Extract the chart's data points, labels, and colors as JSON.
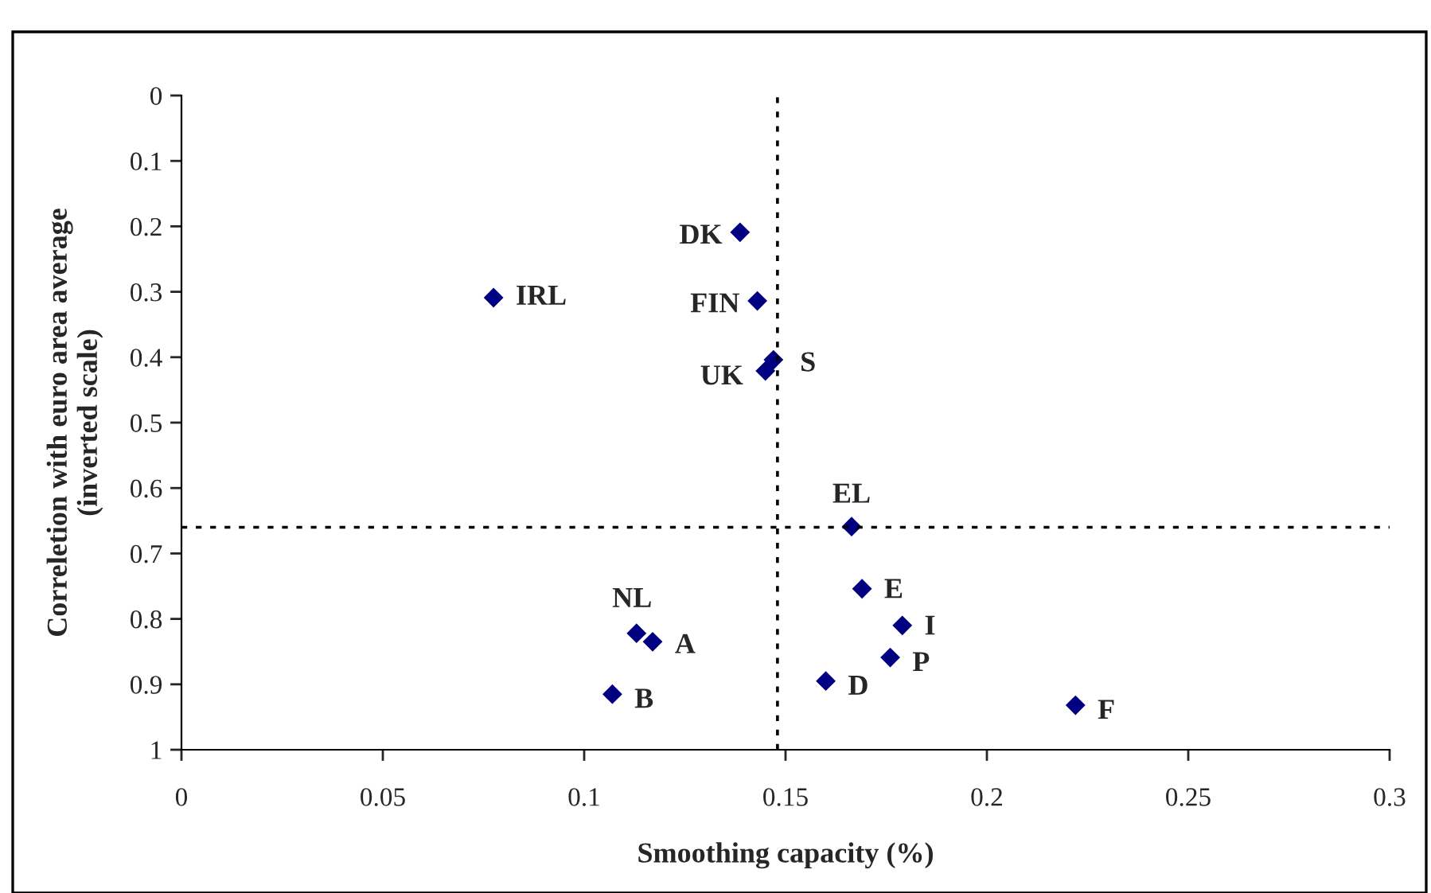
{
  "chart_data": {
    "type": "scatter",
    "xlabel": "Smoothing capacity (%)",
    "ylabel": "Correletion with euro area average\n(inverted scale)",
    "x": [
      0.1387,
      0.0775,
      0.143,
      0.147,
      0.145,
      0.1664,
      0.169,
      0.179,
      0.176,
      0.16,
      0.222,
      0.113,
      0.117,
      0.107
    ],
    "series": [
      {
        "color": "#000080",
        "values": [
          0.209,
          0.309,
          0.314,
          0.404,
          0.421,
          0.659,
          0.754,
          0.81,
          0.859,
          0.895,
          0.932,
          0.822,
          0.835,
          0.915
        ]
      }
    ],
    "marker": "diamond",
    "grid": false,
    "xlim": [
      0,
      0.3
    ],
    "xticks": [
      0,
      0.05,
      0.1,
      0.15,
      0.2,
      0.25,
      0.3
    ],
    "ylim": [
      1,
      0
    ],
    "yticks": [
      0,
      0.1,
      0.2,
      0.3,
      0.4,
      0.5,
      0.6,
      0.7,
      0.8,
      0.9,
      1
    ],
    "ref_lines": [
      {
        "axis": "x",
        "value": 0.148,
        "line_style": "dotted",
        "color": "#000000"
      },
      {
        "axis": "y",
        "value": 0.66,
        "line_style": "dotted",
        "color": "#000000"
      }
    ],
    "annotations": [
      {
        "text": "DK",
        "x": 0.1387,
        "y": 0.209
      },
      {
        "text": "IRL",
        "x": 0.0775,
        "y": 0.309
      },
      {
        "text": "FIN",
        "x": 0.143,
        "y": 0.314
      },
      {
        "text": "S",
        "x": 0.147,
        "y": 0.404
      },
      {
        "text": "UK",
        "x": 0.145,
        "y": 0.421
      },
      {
        "text": "EL",
        "x": 0.1664,
        "y": 0.659
      },
      {
        "text": "E",
        "x": 0.169,
        "y": 0.754
      },
      {
        "text": "I",
        "x": 0.179,
        "y": 0.81
      },
      {
        "text": "P",
        "x": 0.176,
        "y": 0.859
      },
      {
        "text": "D",
        "x": 0.16,
        "y": 0.895
      },
      {
        "text": "F",
        "x": 0.222,
        "y": 0.932
      },
      {
        "text": "NL",
        "x": 0.113,
        "y": 0.822
      },
      {
        "text": "A",
        "x": 0.117,
        "y": 0.835
      },
      {
        "text": "B",
        "x": 0.107,
        "y": 0.915
      }
    ]
  }
}
